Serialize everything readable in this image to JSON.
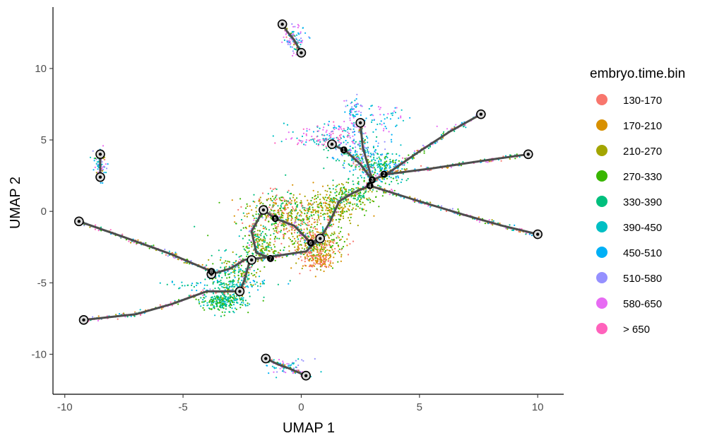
{
  "chart_data": {
    "type": "scatter",
    "title": "",
    "xlabel": "UMAP 1",
    "ylabel": "UMAP 2",
    "xlim": [
      -10.5,
      11.1
    ],
    "ylim": [
      -12.8,
      14.3
    ],
    "xticks": [
      -10,
      -5,
      0,
      5,
      10
    ],
    "yticks": [
      -10,
      -5,
      0,
      5,
      10
    ],
    "xtick_labels": [
      "-10",
      "-5",
      "0",
      "5",
      "10"
    ],
    "ytick_labels": [
      "-10",
      "-5",
      "0",
      "5",
      "10"
    ],
    "grid": false,
    "legend": {
      "title": "embryo.time.bin",
      "position": "right",
      "entries": [
        {
          "label": "130-170",
          "color": "#F8766D"
        },
        {
          "label": "170-210",
          "color": "#D89000"
        },
        {
          "label": "210-270",
          "color": "#A3A500"
        },
        {
          "label": "270-330",
          "color": "#39B600"
        },
        {
          "label": "330-390",
          "color": "#00BF7D"
        },
        {
          "label": "390-450",
          "color": "#00BFC4"
        },
        {
          "label": "450-510",
          "color": "#00B0F6"
        },
        {
          "label": "510-580",
          "color": "#9590FF"
        },
        {
          "label": "580-650",
          "color": "#E76BF3"
        },
        {
          "label": "> 650",
          "color": "#FF62BC"
        }
      ]
    },
    "trajectory_segments": [
      [
        [
          -0.8,
          13.1
        ],
        [
          -0.6,
          12.6
        ],
        [
          -0.3,
          12.0
        ],
        [
          0.0,
          11.1
        ]
      ],
      [
        [
          -1.5,
          -10.3
        ],
        [
          -1.0,
          -10.7
        ],
        [
          -0.5,
          -11.0
        ],
        [
          0.2,
          -11.5
        ]
      ],
      [
        [
          -8.5,
          4.0
        ],
        [
          -8.5,
          3.2
        ],
        [
          -8.5,
          2.4
        ]
      ],
      [
        [
          -9.4,
          -0.7
        ],
        [
          -7.5,
          -1.8
        ],
        [
          -5.5,
          -3.0
        ],
        [
          -3.8,
          -4.2
        ]
      ],
      [
        [
          -9.2,
          -7.6
        ],
        [
          -7.0,
          -7.2
        ],
        [
          -5.5,
          -6.5
        ],
        [
          -4.0,
          -5.6
        ],
        [
          -2.6,
          -5.6
        ]
      ],
      [
        [
          -3.8,
          -4.4
        ],
        [
          -3.0,
          -4.0
        ],
        [
          -2.4,
          -3.4
        ],
        [
          -1.4,
          -3.2
        ]
      ],
      [
        [
          -2.6,
          -5.6
        ],
        [
          -2.4,
          -4.8
        ],
        [
          -2.2,
          -3.6
        ]
      ],
      [
        [
          -1.4,
          -3.2
        ],
        [
          -0.6,
          -3.0
        ],
        [
          0.2,
          -2.8
        ],
        [
          0.8,
          -1.9
        ]
      ],
      [
        [
          -1.6,
          0.1
        ],
        [
          -1.1,
          -0.5
        ],
        [
          -0.3,
          -1.0
        ],
        [
          0.4,
          -2.2
        ]
      ],
      [
        [
          -1.6,
          0.1
        ],
        [
          -2.1,
          -1.4
        ],
        [
          -1.9,
          -2.9
        ],
        [
          -1.4,
          -3.2
        ]
      ],
      [
        [
          0.4,
          -2.2
        ],
        [
          0.8,
          -1.9
        ],
        [
          1.2,
          -0.8
        ],
        [
          1.6,
          0.7
        ],
        [
          2.2,
          1.3
        ],
        [
          2.9,
          1.8
        ]
      ],
      [
        [
          2.9,
          1.8
        ],
        [
          3.0,
          2.2
        ],
        [
          3.6,
          2.6
        ]
      ],
      [
        [
          3.6,
          2.6
        ],
        [
          5.0,
          4.2
        ],
        [
          6.3,
          5.6
        ],
        [
          7.6,
          6.8
        ]
      ],
      [
        [
          3.6,
          2.6
        ],
        [
          5.5,
          3.0
        ],
        [
          7.5,
          3.5
        ],
        [
          9.6,
          4.0
        ]
      ],
      [
        [
          2.9,
          1.8
        ],
        [
          5.0,
          0.7
        ],
        [
          7.0,
          -0.3
        ],
        [
          8.5,
          -1.0
        ],
        [
          10.0,
          -1.6
        ]
      ],
      [
        [
          3.0,
          2.2
        ],
        [
          2.5,
          3.3
        ],
        [
          1.9,
          4.2
        ],
        [
          1.3,
          4.7
        ]
      ],
      [
        [
          2.5,
          6.2
        ],
        [
          2.6,
          4.5
        ],
        [
          3.0,
          2.2
        ]
      ]
    ],
    "trajectory_nodes": [
      {
        "x": -0.8,
        "y": 13.1,
        "label": ""
      },
      {
        "x": 0.0,
        "y": 11.1,
        "label": ""
      },
      {
        "x": -8.5,
        "y": 4.0,
        "label": ""
      },
      {
        "x": -8.5,
        "y": 2.4,
        "label": ""
      },
      {
        "x": 1.3,
        "y": 4.7,
        "label": ""
      },
      {
        "x": 2.5,
        "y": 6.2,
        "label": ""
      },
      {
        "x": 7.6,
        "y": 6.8,
        "label": ""
      },
      {
        "x": 9.6,
        "y": 4.0,
        "label": ""
      },
      {
        "x": 10.0,
        "y": -1.6,
        "label": ""
      },
      {
        "x": -9.4,
        "y": -0.7,
        "label": ""
      },
      {
        "x": -9.2,
        "y": -7.6,
        "label": ""
      },
      {
        "x": -1.6,
        "y": 0.1,
        "label": ""
      },
      {
        "x": 0.8,
        "y": -1.9,
        "label": ""
      },
      {
        "x": -2.1,
        "y": -3.4,
        "label": ""
      },
      {
        "x": -3.8,
        "y": -4.4,
        "label": ""
      },
      {
        "x": -2.6,
        "y": -5.6,
        "label": ""
      },
      {
        "x": -1.5,
        "y": -10.3,
        "label": ""
      },
      {
        "x": 0.2,
        "y": -11.5,
        "label": ""
      }
    ],
    "branch_points": [
      {
        "x": 1.8,
        "y": 4.3,
        "label": "1"
      },
      {
        "x": 3.5,
        "y": 2.6,
        "label": "2"
      },
      {
        "x": 3.0,
        "y": 2.2,
        "label": "3"
      },
      {
        "x": 2.9,
        "y": 1.8,
        "label": "4"
      },
      {
        "x": -1.1,
        "y": -0.5,
        "label": "5"
      },
      {
        "x": 0.4,
        "y": -2.2,
        "label": "6"
      },
      {
        "x": -1.3,
        "y": -3.3,
        "label": "7"
      },
      {
        "x": -3.8,
        "y": -4.2,
        "label": "8"
      }
    ],
    "cell_clusters": [
      {
        "cx": -0.3,
        "cy": 12.1,
        "sx": 0.25,
        "sy": 0.5,
        "n": 70,
        "colors": [
          7,
          8,
          6,
          5
        ]
      },
      {
        "cx": -0.6,
        "cy": -10.9,
        "sx": 0.5,
        "sy": 0.3,
        "n": 60,
        "colors": [
          8,
          7,
          6,
          5
        ]
      },
      {
        "cx": -8.5,
        "cy": 3.2,
        "sx": 0.12,
        "sy": 0.5,
        "n": 60,
        "colors": [
          7,
          6,
          5,
          8
        ]
      },
      {
        "cx": -0.9,
        "cy": -0.3,
        "sx": 0.9,
        "sy": 0.9,
        "n": 500,
        "colors": [
          3,
          2,
          1,
          4,
          0
        ]
      },
      {
        "cx": 0.7,
        "cy": -2.3,
        "sx": 0.6,
        "sy": 0.7,
        "n": 350,
        "colors": [
          1,
          2,
          0,
          3
        ]
      },
      {
        "cx": 0.8,
        "cy": -3.4,
        "sx": 0.3,
        "sy": 0.3,
        "n": 120,
        "colors": [
          1,
          0
        ]
      },
      {
        "cx": 1.4,
        "cy": 0.3,
        "sx": 0.6,
        "sy": 0.6,
        "n": 250,
        "colors": [
          1,
          2,
          3
        ]
      },
      {
        "cx": -1.7,
        "cy": -2.6,
        "sx": 0.4,
        "sy": 0.6,
        "n": 150,
        "colors": [
          3,
          2,
          4
        ]
      },
      {
        "cx": -3.3,
        "cy": -6.3,
        "sx": 0.45,
        "sy": 0.35,
        "n": 260,
        "colors": [
          4,
          5,
          3
        ]
      },
      {
        "cx": -2.8,
        "cy": -4.6,
        "sx": 0.5,
        "sy": 0.8,
        "n": 200,
        "colors": [
          3,
          4,
          5,
          2
        ]
      },
      {
        "cx": 3.3,
        "cy": 3.0,
        "sx": 0.5,
        "sy": 0.6,
        "n": 220,
        "colors": [
          4,
          5,
          3,
          6
        ]
      },
      {
        "cx": 2.2,
        "cy": 1.2,
        "sx": 0.6,
        "sy": 0.4,
        "n": 150,
        "colors": [
          3,
          2,
          4
        ]
      },
      {
        "cx": 2.4,
        "cy": 4.2,
        "sx": 0.6,
        "sy": 0.6,
        "n": 160,
        "colors": [
          5,
          6,
          4,
          7
        ]
      },
      {
        "cx": 2.2,
        "cy": 7.0,
        "sx": 0.15,
        "sy": 0.5,
        "n": 60,
        "colors": [
          6,
          5,
          8,
          7
        ]
      },
      {
        "cx": 3.6,
        "cy": 6.5,
        "sx": 0.5,
        "sy": 0.6,
        "n": 50,
        "colors": [
          5,
          6,
          8
        ]
      },
      {
        "cx": 1.3,
        "cy": 5.6,
        "sx": 0.9,
        "sy": 0.35,
        "n": 90,
        "colors": [
          8,
          6,
          5,
          9
        ]
      },
      {
        "cx": 0.6,
        "cy": 4.9,
        "sx": 0.8,
        "sy": 0.15,
        "n": 70,
        "colors": [
          8,
          9,
          5
        ]
      },
      {
        "cx": -3.3,
        "cy": -5.1,
        "sx": 1.3,
        "sy": 0.2,
        "n": 80,
        "colors": [
          5,
          6,
          4
        ]
      }
    ]
  }
}
